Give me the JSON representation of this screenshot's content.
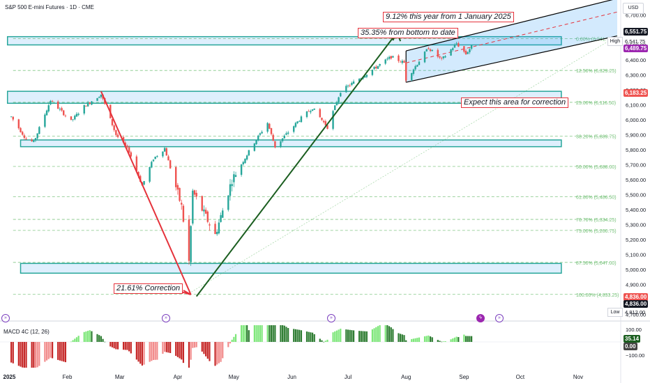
{
  "chart_title": "S&P 500 E-mini Futures · 1D · CME",
  "currency": "USD",
  "annotations": {
    "ytd": "9.12% this year from 1 January 2025",
    "bottom": "35.35% from bottom to date",
    "correction_area": "Expect this area for correction",
    "correction_pct": "21.61% Correction"
  },
  "price_tags": {
    "top": "6,551.75",
    "high_value": "6,541.75",
    "high_label": "High",
    "current": "6,489.75",
    "zone": "6,183.25",
    "low1": "4,836.00",
    "low2": "4,836.00",
    "low_value": "4,812.00",
    "low_label": "Low"
  },
  "macd": {
    "title": "MACD 4C (12, 26)",
    "value": "35.14",
    "zero": "0.00"
  },
  "colors": {
    "up": "#26a69a",
    "down": "#ef5350",
    "zone": "#26a69a",
    "trend_up": "#1b5e20",
    "trend_down": "#e5323b",
    "channel": "#90caf9",
    "accent_purple": "#9c27b0"
  },
  "chart_data": {
    "type": "line",
    "title": "S&P 500 E-mini Futures · 1D · CME",
    "x_ticks": [
      "2025",
      "Feb",
      "Mar",
      "Apr",
      "May",
      "Jun",
      "Jul",
      "Aug",
      "Sep",
      "Oct",
      "Nov"
    ],
    "y_ticks": [
      "6,700.00",
      "6,600.00",
      "6,500.00",
      "6,400.00",
      "6,300.00",
      "6,200.00",
      "6,100.00",
      "6,000.00",
      "5,900.00",
      "5,800.00",
      "5,700.00",
      "5,600.00",
      "5,500.00",
      "5,400.00",
      "5,300.00",
      "5,200.00",
      "5,100.00",
      "5,000.00",
      "4,900.00",
      "4,800.00",
      "4,700.00"
    ],
    "ylim": [
      4660,
      6800
    ],
    "fib_levels": [
      {
        "label": "0.00% (6,541.75)",
        "value": 6541.75
      },
      {
        "label": "12.50% (6,329.25)",
        "value": 6329.25
      },
      {
        "label": "25.00% (6,116.50)",
        "value": 6116.5
      },
      {
        "label": "38.20% (5,889.75)",
        "value": 5889.75
      },
      {
        "label": "50.00% (5,688.00)",
        "value": 5688
      },
      {
        "label": "61.80% (5,486.50)",
        "value": 5486.5
      },
      {
        "label": "70.70% (5,334.25)",
        "value": 5334.25
      },
      {
        "label": "75.00% (5,260.75)",
        "value": 5260.75
      },
      {
        "label": "87.50% (5,047.00)",
        "value": 5047
      },
      {
        "label": "100.00% (4,833.25)",
        "value": 4833.25
      }
    ],
    "zones": [
      {
        "x_start": "2024-12-31",
        "x_end": "2025-10-23",
        "low": 6110,
        "high": 6190
      },
      {
        "x_start": "2025-01-07",
        "x_end": "2025-10-23",
        "low": 5820,
        "high": 5865
      },
      {
        "x_start": "2025-01-07",
        "x_end": "2025-10-23",
        "low": 4975,
        "high": 5040
      },
      {
        "x_start": "2024-12-31",
        "x_end": "2025-10-23",
        "low": 6500,
        "high": 6555
      }
    ],
    "series": [
      {
        "values": [
          [
            "2025-01-02",
            6020
          ],
          [
            "2025-01-10",
            5870
          ],
          [
            "2025-01-14",
            5850
          ],
          [
            "2025-01-23",
            6130
          ],
          [
            "2025-02-03",
            5990
          ],
          [
            "2025-02-10",
            6090
          ],
          [
            "2025-02-19",
            6170
          ],
          [
            "2025-02-27",
            5900
          ],
          [
            "2025-03-06",
            5790
          ],
          [
            "2025-03-13",
            5560
          ],
          [
            "2025-03-19",
            5740
          ],
          [
            "2025-03-25",
            5810
          ],
          [
            "2025-04-03",
            5420
          ],
          [
            "2025-04-07",
            5050
          ],
          [
            "2025-04-09",
            5520
          ],
          [
            "2025-04-21",
            5230
          ],
          [
            "2025-04-30",
            5600
          ],
          [
            "2025-05-12",
            5850
          ],
          [
            "2025-05-19",
            5980
          ],
          [
            "2025-05-23",
            5820
          ],
          [
            "2025-06-05",
            6000
          ],
          [
            "2025-06-12",
            6080
          ],
          [
            "2025-06-20",
            5950
          ],
          [
            "2025-06-27",
            6190
          ],
          [
            "2025-07-10",
            6300
          ],
          [
            "2025-07-24",
            6420
          ],
          [
            "2025-07-31",
            6380
          ],
          [
            "2025-08-01",
            6270
          ],
          [
            "2025-08-13",
            6480
          ],
          [
            "2025-08-20",
            6400
          ],
          [
            "2025-08-28",
            6510
          ],
          [
            "2025-09-02",
            6440
          ],
          [
            "2025-09-05",
            6490
          ]
        ]
      }
    ]
  }
}
